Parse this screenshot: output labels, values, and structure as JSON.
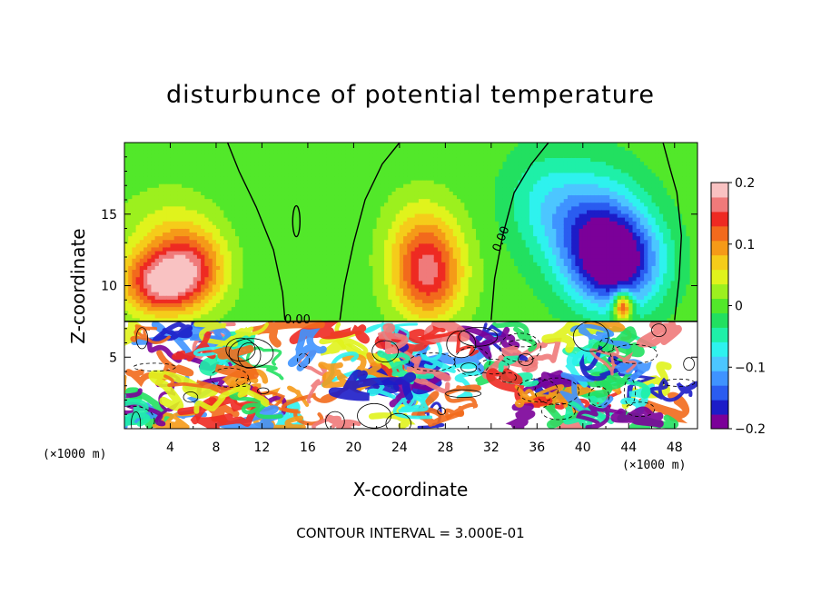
{
  "chart_data": {
    "type": "heatmap",
    "title": "disturbunce of potential temperature",
    "xlabel": "X-coordinate",
    "ylabel": "Z-coordinate",
    "x_unit": "(×1000 m)",
    "x_unit_right": "(×1000 m)",
    "xlim": [
      0,
      50
    ],
    "ylim": [
      0,
      20
    ],
    "x_ticks": [
      "4",
      "8",
      "12",
      "16",
      "20",
      "24",
      "28",
      "32",
      "36",
      "40",
      "44",
      "48"
    ],
    "y_ticks": [
      "5",
      "10",
      "15"
    ],
    "colorbar": {
      "ticks": [
        "0.2",
        "0.1",
        "0",
        "−0.1",
        "−0.2"
      ],
      "range": [
        -0.2,
        0.2
      ],
      "colors": [
        "#7b0099",
        "#1c1cc8",
        "#2a5cf0",
        "#3f93ff",
        "#4cc6ff",
        "#2ef2ee",
        "#1ef0a8",
        "#22e060",
        "#52e82a",
        "#9cf01e",
        "#e0f31c",
        "#f5cc1a",
        "#f59a18",
        "#f26a1c",
        "#ee2a22",
        "#f07a7a",
        "#f9c2c2"
      ]
    },
    "contour_labels": [
      "0.00",
      "0.00"
    ],
    "footer": "CONTOUR INTERVAL = 3.000E-01",
    "blobs_upper": [
      {
        "x": 3,
        "z": 10.2,
        "v": 0.16,
        "sx": 3.2,
        "sz": 2.2
      },
      {
        "x": 6,
        "z": 11.2,
        "v": 0.11,
        "sx": 3.0,
        "sz": 2.6
      },
      {
        "x": 4,
        "z": 13.5,
        "v": 0.05,
        "sx": 4.0,
        "sz": 3.0
      },
      {
        "x": 26.5,
        "z": 10.6,
        "v": 0.14,
        "sx": 3.0,
        "sz": 3.0
      },
      {
        "x": 26,
        "z": 13.5,
        "v": 0.06,
        "sx": 3.2,
        "sz": 3.0
      },
      {
        "x": 43,
        "z": 11.6,
        "v": -0.18,
        "sx": 3.8,
        "sz": 3.2
      },
      {
        "x": 41,
        "z": 14.0,
        "v": -0.12,
        "sx": 4.2,
        "sz": 4.0
      },
      {
        "x": 36.5,
        "z": 16.0,
        "v": -0.05,
        "sx": 3.5,
        "sz": 3.5
      },
      {
        "x": 43.5,
        "z": 8.6,
        "v": 0.2,
        "sx": 0.8,
        "sz": 1.0
      },
      {
        "x": 14.5,
        "z": 16.0,
        "v": -0.01,
        "sx": 6.0,
        "sz": 6.0
      }
    ]
  }
}
